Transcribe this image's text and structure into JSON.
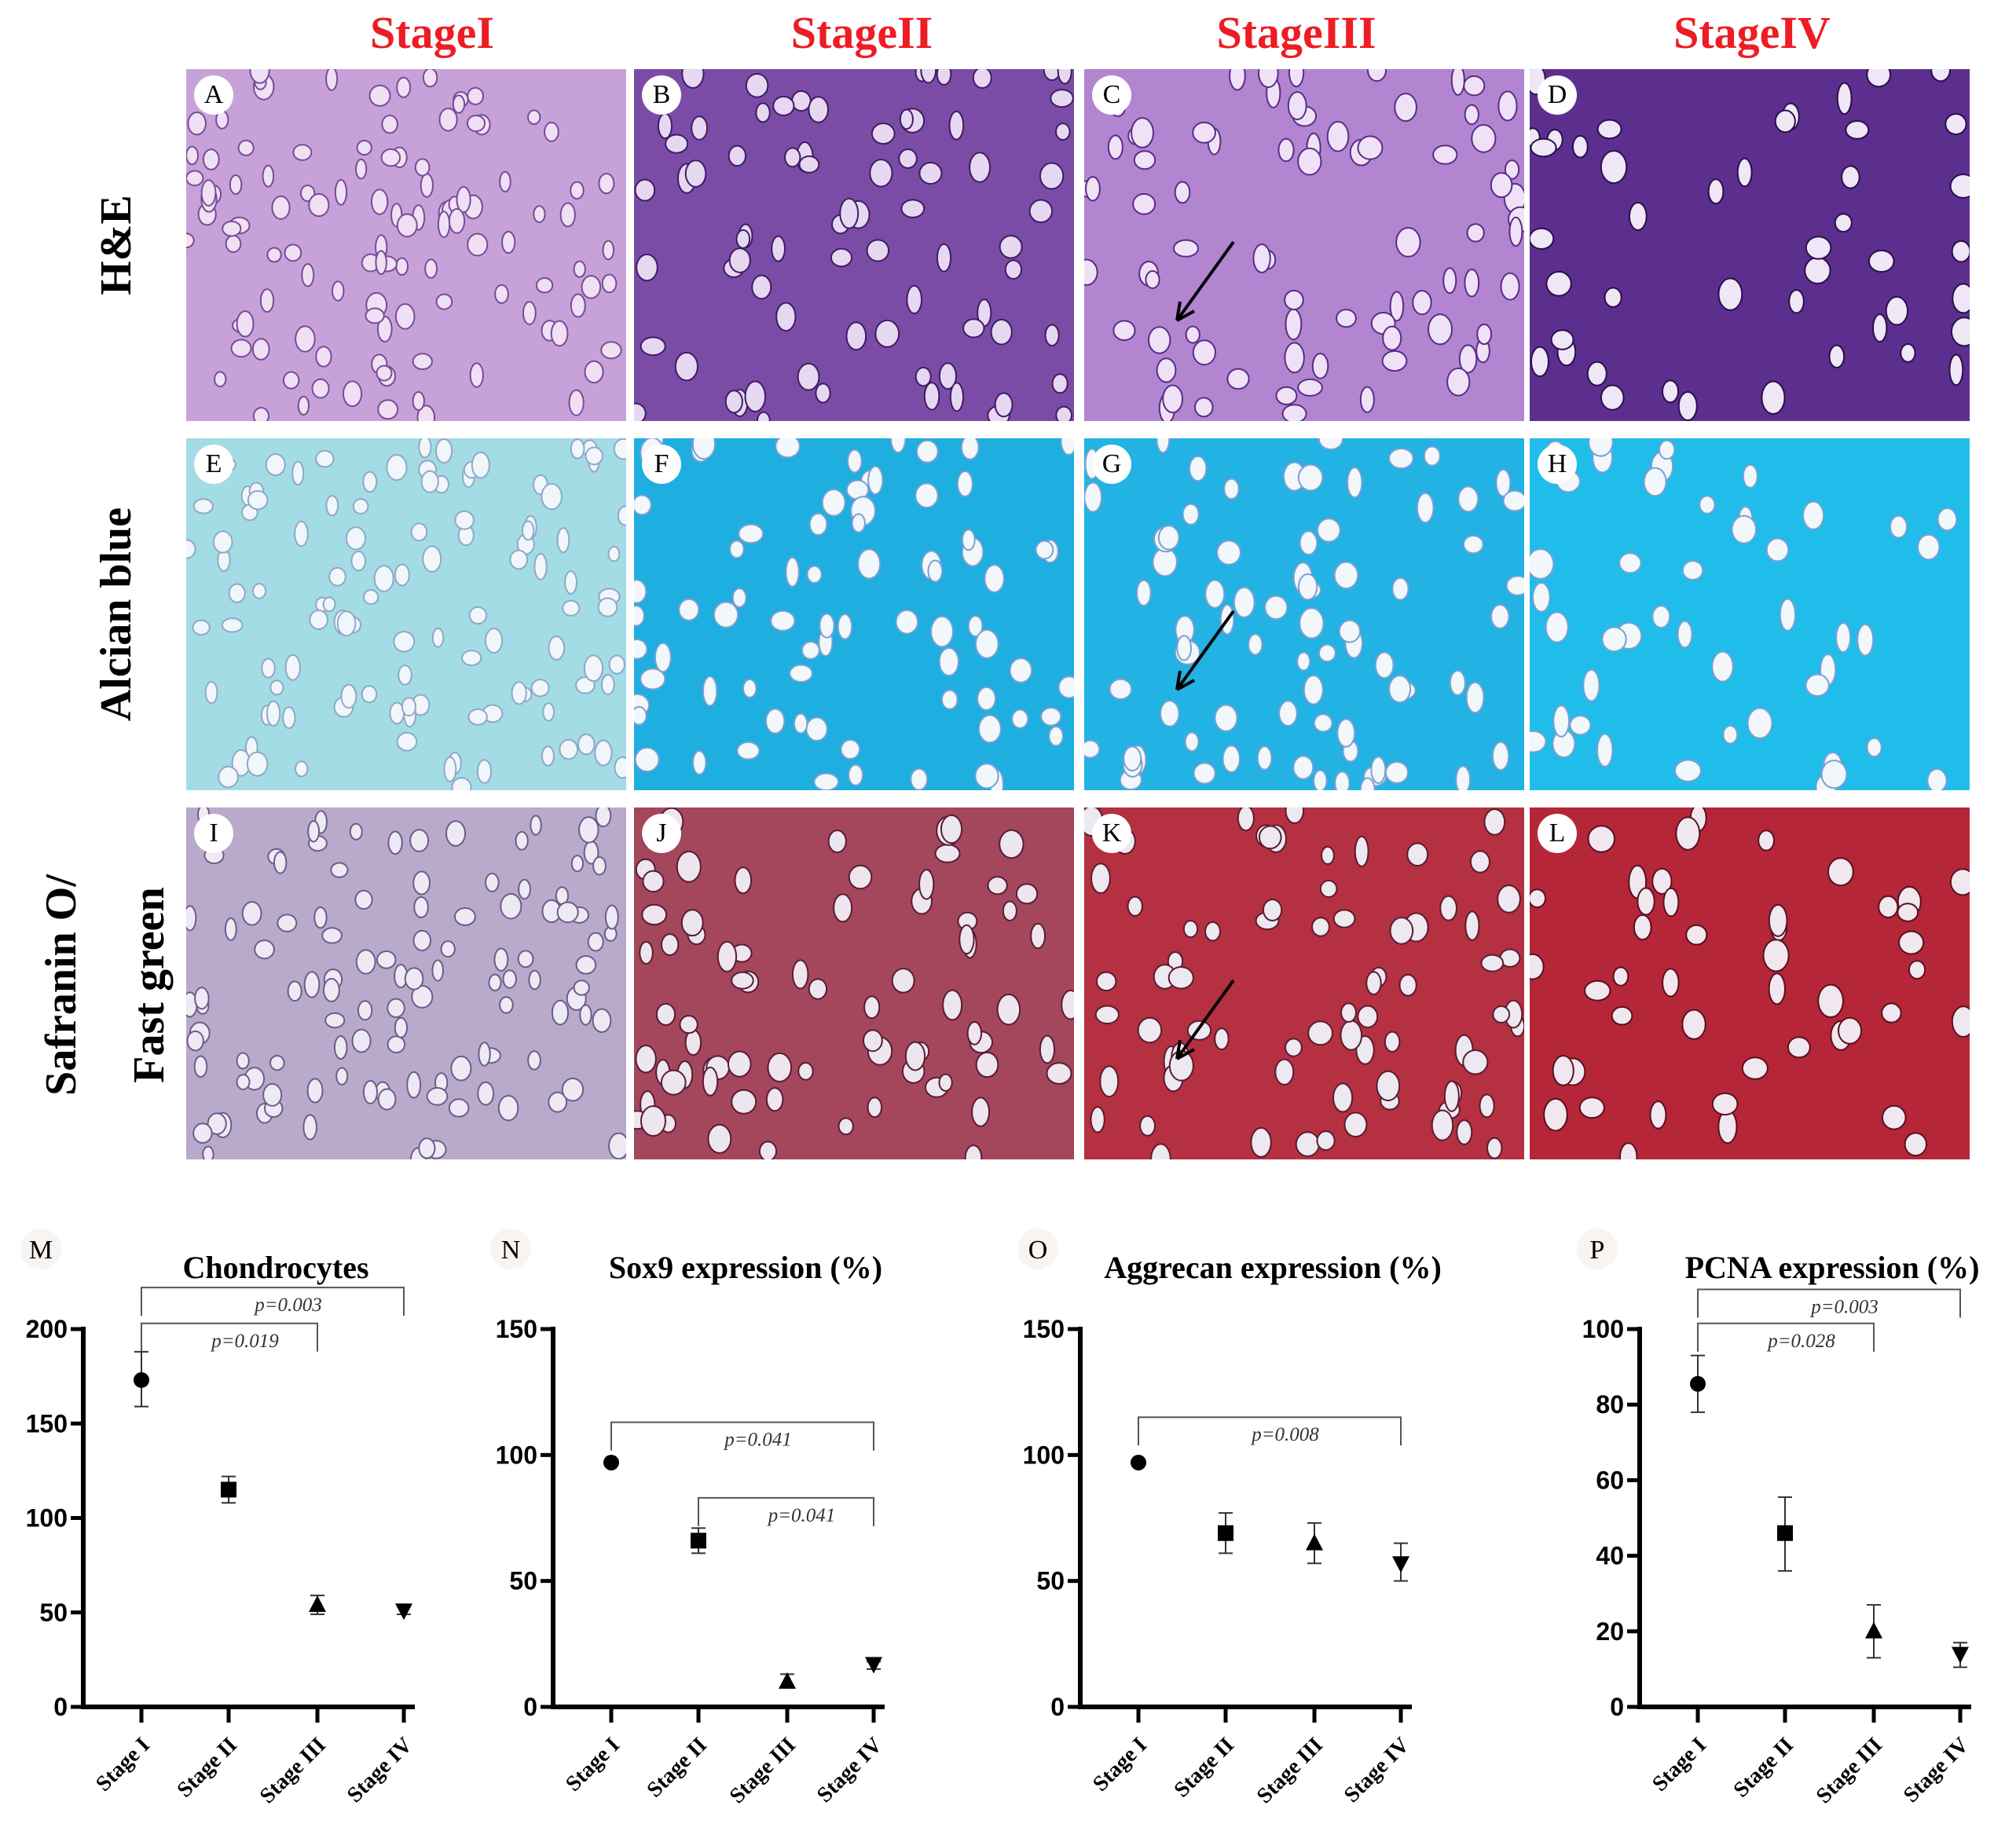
{
  "columns": [
    "StageI",
    "StageII",
    "StageIII",
    "StageIV"
  ],
  "rows": [
    {
      "label": "H&E",
      "panels": [
        {
          "letter": "A",
          "color": "#c7a2d8",
          "cell": "#efe0f3",
          "edge": "#7a4a9a"
        },
        {
          "letter": "B",
          "color": "#7b4ca6",
          "cell": "#e6d8f0",
          "edge": "#3e1c66"
        },
        {
          "letter": "C",
          "color": "#b185d0",
          "cell": "#efe2f6",
          "edge": "#5a2c88",
          "arrow": true
        },
        {
          "letter": "D",
          "color": "#5c2e8e",
          "cell": "#efe6f6",
          "edge": "#2a0f4c"
        }
      ]
    },
    {
      "label": "Alcian blue",
      "panels": [
        {
          "letter": "E",
          "color": "#a3dce4",
          "cell": "#f1f6fa",
          "edge": "#8fa8c8"
        },
        {
          "letter": "F",
          "color": "#1eaee0",
          "cell": "#f2f7fb",
          "edge": "#7aa0d0"
        },
        {
          "letter": "G",
          "color": "#22b2e3",
          "cell": "#f2f7fb",
          "edge": "#7aa0d0",
          "arrow": true
        },
        {
          "letter": "H",
          "color": "#20bdea",
          "cell": "#f2f7fb",
          "edge": "#7aa0d0"
        }
      ]
    },
    {
      "label1": "Safranin O/",
      "label": "Fast green",
      "panels": [
        {
          "letter": "I",
          "color": "#b9aacc",
          "cell": "#eeeaf3",
          "edge": "#6c5c8c"
        },
        {
          "letter": "J",
          "color": "#a4465c",
          "cell": "#eee6ef",
          "edge": "#5a1c32"
        },
        {
          "letter": "K",
          "color": "#b53040",
          "cell": "#eee8f0",
          "edge": "#5a1c32",
          "arrow": true
        },
        {
          "letter": "L",
          "color": "#b52638",
          "cell": "#f0e8ee",
          "edge": "#5a1020"
        }
      ]
    }
  ],
  "chart_data": [
    {
      "type": "scatter",
      "letter": "M",
      "title": "Chondrocytes",
      "categories": [
        "Stage I",
        "Stage II",
        "Stage III",
        "Stage IV"
      ],
      "values": [
        173,
        115,
        54,
        51
      ],
      "err_low": [
        159,
        108,
        49,
        49
      ],
      "err_high": [
        188,
        122,
        59,
        53
      ],
      "ylim": [
        0,
        200
      ],
      "yticks": [
        0,
        50,
        100,
        150,
        200
      ],
      "brackets": [
        {
          "from": 0,
          "to": 3,
          "level": 222,
          "label": "p=0.003"
        },
        {
          "from": 0,
          "to": 2,
          "level": 203,
          "label": "p=0.019"
        }
      ]
    },
    {
      "type": "scatter",
      "letter": "N",
      "title": "Sox9 expression (%)",
      "categories": [
        "Stage I",
        "Stage II",
        "Stage III",
        "Stage IV"
      ],
      "values": [
        97,
        66,
        10,
        17
      ],
      "err_low": [
        97,
        61,
        8,
        15
      ],
      "err_high": [
        97,
        71,
        13,
        18
      ],
      "ylim": [
        0,
        150
      ],
      "yticks": [
        0,
        50,
        100,
        150
      ],
      "brackets": [
        {
          "from": 0,
          "to": 3,
          "level": 113,
          "label": "p=0.041"
        },
        {
          "from": 1,
          "to": 3,
          "level": 83,
          "label": "p=0.041"
        }
      ]
    },
    {
      "type": "scatter",
      "letter": "O",
      "title": "Aggrecan expression (%)",
      "categories": [
        "Stage I",
        "Stage II",
        "Stage III",
        "Stage IV"
      ],
      "values": [
        97,
        69,
        65,
        57
      ],
      "err_low": [
        97,
        61,
        57,
        50
      ],
      "err_high": [
        97,
        77,
        73,
        65
      ],
      "ylim": [
        0,
        150
      ],
      "yticks": [
        0,
        50,
        100,
        150
      ],
      "brackets": [
        {
          "from": 0,
          "to": 3,
          "level": 115,
          "label": "p=0.008"
        }
      ]
    },
    {
      "type": "scatter",
      "letter": "P",
      "title": "PCNA expression (%)",
      "categories": [
        "Stage I",
        "Stage II",
        "Stage III",
        "Stage IV"
      ],
      "values": [
        85.5,
        46,
        20,
        14
      ],
      "err_low": [
        78,
        36,
        13,
        10.5
      ],
      "err_high": [
        93,
        55.5,
        27,
        17
      ],
      "ylim": [
        0,
        100
      ],
      "yticks": [
        0,
        20,
        40,
        60,
        80,
        100
      ],
      "brackets": [
        {
          "from": 0,
          "to": 3,
          "level": 110.5,
          "label": "p=0.003"
        },
        {
          "from": 0,
          "to": 2,
          "level": 101.5,
          "label": "p=0.028"
        }
      ]
    }
  ],
  "markers": [
    "circle",
    "square",
    "triangle",
    "inverted-triangle"
  ]
}
